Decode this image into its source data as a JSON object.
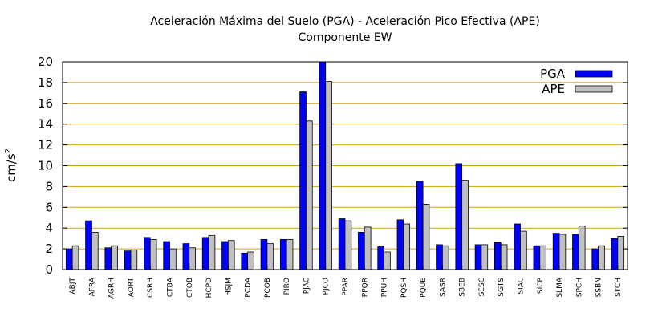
{
  "chart_data": {
    "type": "bar",
    "title": "Aceleración Máxima del Suelo (PGA) -  Aceleración Pico Efectiva (APE)",
    "subtitle": "Componente EW",
    "ylabel": "cm/s",
    "ylabel_sup": "2",
    "ylim": [
      0,
      20
    ],
    "yticks": [
      "0",
      "2",
      "4",
      "6",
      "8",
      "10",
      "12",
      "14",
      "16",
      "18",
      "20"
    ],
    "grid": true,
    "legend_position": "top-right",
    "categories": [
      "ABJT",
      "AFRA",
      "AGRH",
      "AORT",
      "CSRH",
      "CTBA",
      "CTOB",
      "HCPD",
      "HSJM",
      "PCDA",
      "PCOB",
      "PIRO",
      "PJAC",
      "PJCO",
      "PPAR",
      "PPQR",
      "PPUH",
      "PQSH",
      "PQUE",
      "SASR",
      "SBEB",
      "SESC",
      "SGTS",
      "SIAC",
      "SICP",
      "SLMA",
      "SPCH",
      "SSBN",
      "STCH"
    ],
    "series": [
      {
        "name": "PGA",
        "color": "#0000ff",
        "values": [
          2.0,
          4.7,
          2.1,
          1.8,
          3.1,
          2.7,
          2.5,
          3.1,
          2.7,
          1.6,
          2.9,
          2.9,
          17.1,
          20.0,
          4.9,
          3.6,
          2.2,
          4.8,
          8.5,
          2.4,
          10.2,
          2.4,
          2.6,
          4.4,
          2.3,
          3.5,
          3.4,
          2.0,
          3.0
        ]
      },
      {
        "name": "APE",
        "color": "#c0c0c0",
        "values": [
          2.3,
          3.6,
          2.3,
          1.9,
          2.9,
          2.0,
          2.1,
          3.3,
          2.8,
          1.7,
          2.5,
          2.9,
          14.3,
          18.1,
          4.7,
          4.1,
          1.7,
          4.4,
          6.3,
          2.3,
          8.6,
          2.4,
          2.4,
          3.7,
          2.3,
          3.4,
          4.2,
          2.3,
          3.2
        ]
      }
    ]
  }
}
